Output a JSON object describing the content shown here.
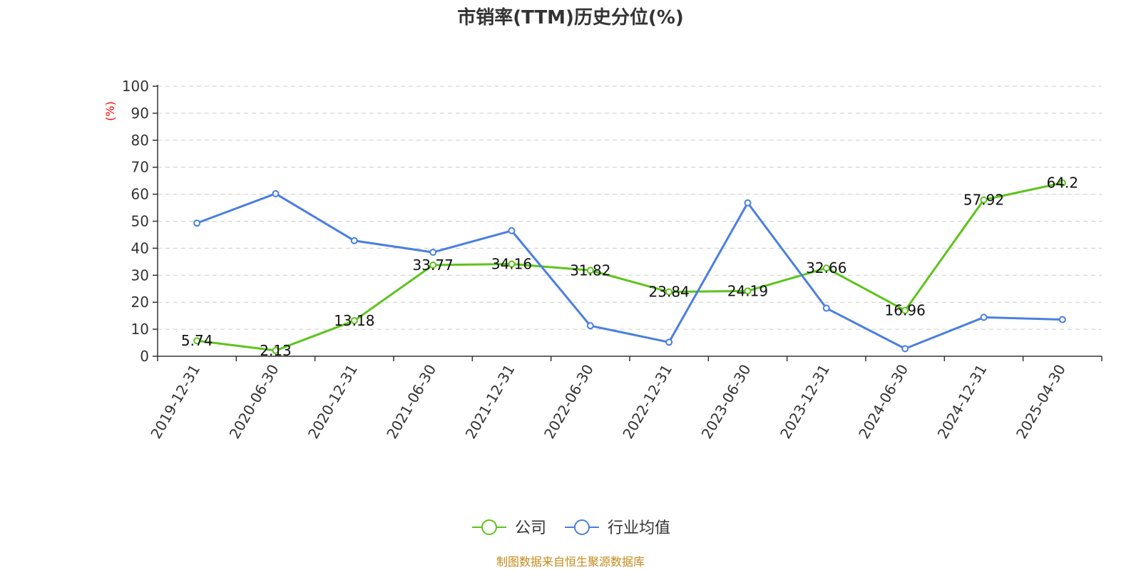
{
  "chart_data": {
    "type": "line",
    "title": "市销率(TTM)历史分位(%)",
    "ylabel": "(%)",
    "xlabel": "",
    "ylim": [
      0,
      100
    ],
    "yticks": [
      0,
      10,
      20,
      30,
      40,
      50,
      60,
      70,
      80,
      90,
      100
    ],
    "grid": true,
    "legend": "bottom-center",
    "categories": [
      "2019-12-31",
      "2020-06-30",
      "2020-12-31",
      "2021-06-30",
      "2021-12-31",
      "2022-06-30",
      "2022-12-31",
      "2023-06-30",
      "2023-12-31",
      "2024-06-30",
      "2024-12-31",
      "2025-04-30"
    ],
    "series": [
      {
        "name": "公司",
        "color": "#5cc41c",
        "values": [
          5.74,
          2.13,
          13.18,
          33.77,
          34.16,
          31.82,
          23.84,
          24.19,
          32.66,
          16.96,
          57.92,
          64.2
        ],
        "labels": [
          "5.74",
          "2.13",
          "13.18",
          "33.77",
          "34.16",
          "31.82",
          "23.84",
          "24.19",
          "32.66",
          "16.96",
          "57.92",
          "64.2"
        ]
      },
      {
        "name": "行业均值",
        "color": "#4a7fe0",
        "values": [
          49.3,
          60.2,
          42.8,
          38.5,
          46.5,
          11.3,
          5.2,
          56.8,
          17.8,
          2.8,
          14.4,
          13.6
        ]
      }
    ],
    "source": "制图数据来自恒生聚源数据库"
  }
}
